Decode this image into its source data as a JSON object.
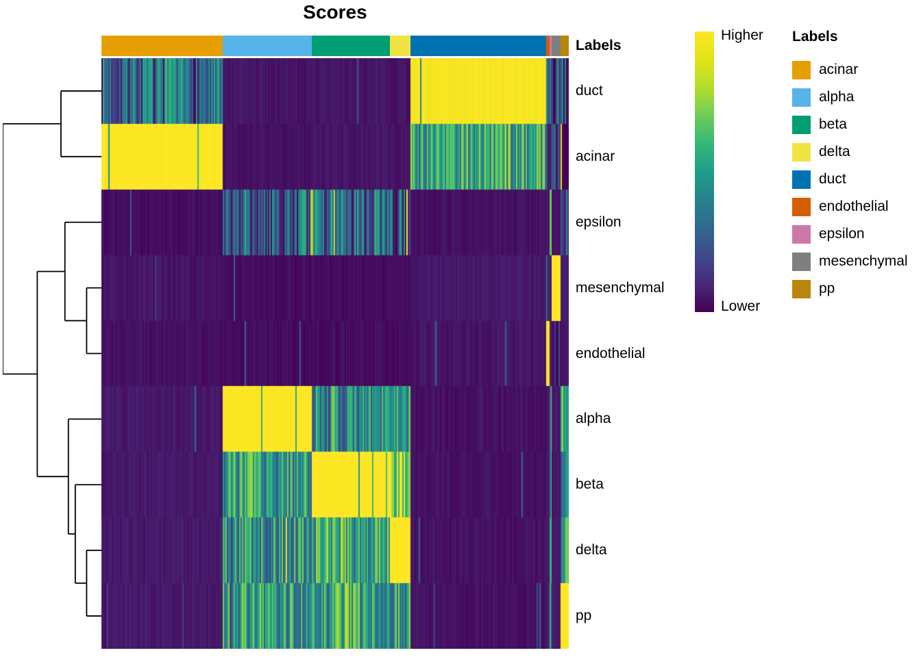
{
  "title": "Scores",
  "annotation_header": "Labels",
  "colorbar": {
    "top_label": "Higher",
    "bottom_label": "Lower"
  },
  "legend": {
    "title": "Labels",
    "entries": [
      {
        "label": "acinar",
        "color": "#E69F00"
      },
      {
        "label": "alpha",
        "color": "#56B4E9"
      },
      {
        "label": "beta",
        "color": "#009E73"
      },
      {
        "label": "delta",
        "color": "#F0E442"
      },
      {
        "label": "duct",
        "color": "#0072B2"
      },
      {
        "label": "endothelial",
        "color": "#D55E00"
      },
      {
        "label": "epsilon",
        "color": "#CC79A7"
      },
      {
        "label": "mesenchymal",
        "color": "#7F7F7F"
      },
      {
        "label": "pp",
        "color": "#B8860B"
      }
    ]
  },
  "chart_data": {
    "type": "heatmap",
    "title": "Scores",
    "value_scale": "normalized score, 0 = Lower (dark purple), 1 = Higher (yellow), viridis colormap",
    "rows": [
      "duct",
      "acinar",
      "epsilon",
      "mesenchymal",
      "endothelial",
      "alpha",
      "beta",
      "delta",
      "pp"
    ],
    "column_groups": [
      {
        "label": "acinar",
        "color": "#E69F00",
        "width_frac": 0.26
      },
      {
        "label": "alpha",
        "color": "#56B4E9",
        "width_frac": 0.19
      },
      {
        "label": "beta",
        "color": "#009E73",
        "width_frac": 0.168
      },
      {
        "label": "delta",
        "color": "#F0E442",
        "width_frac": 0.044
      },
      {
        "label": "duct",
        "color": "#0072B2",
        "width_frac": 0.29
      },
      {
        "label": "endothelial",
        "color": "#D55E00",
        "width_frac": 0.007
      },
      {
        "label": "epsilon",
        "color": "#CC79A7",
        "width_frac": 0.004
      },
      {
        "label": "mesenchymal",
        "color": "#7F7F7F",
        "width_frac": 0.019
      },
      {
        "label": "pp",
        "color": "#B8860B",
        "width_frac": 0.018
      }
    ],
    "values": [
      [
        0.3,
        0.04,
        0.04,
        0.04,
        0.97,
        0.15,
        0.2,
        0.25,
        0.2
      ],
      [
        1.0,
        0.03,
        0.04,
        0.04,
        0.55,
        0.1,
        0.15,
        0.2,
        0.2
      ],
      [
        0.02,
        0.28,
        0.33,
        0.25,
        0.03,
        0.05,
        0.6,
        0.05,
        0.3
      ],
      [
        0.04,
        0.02,
        0.02,
        0.02,
        0.05,
        0.1,
        0.05,
        1.0,
        0.05
      ],
      [
        0.03,
        0.02,
        0.02,
        0.02,
        0.04,
        1.0,
        0.05,
        0.1,
        0.05
      ],
      [
        0.05,
        1.0,
        0.45,
        0.5,
        0.03,
        0.05,
        0.55,
        0.05,
        0.5
      ],
      [
        0.05,
        0.5,
        1.0,
        0.8,
        0.03,
        0.05,
        0.5,
        0.05,
        0.55
      ],
      [
        0.05,
        0.45,
        0.55,
        1.0,
        0.03,
        0.05,
        0.5,
        0.05,
        0.5
      ],
      [
        0.05,
        0.5,
        0.55,
        0.5,
        0.03,
        0.05,
        0.5,
        0.05,
        1.0
      ]
    ],
    "colormap": {
      "name": "viridis",
      "stops": [
        "#440154",
        "#482878",
        "#3E4A89",
        "#31688E",
        "#26828E",
        "#1F9E89",
        "#35B779",
        "#6DCD59",
        "#B4DE2C",
        "#DFE318",
        "#FDE725"
      ]
    },
    "row_dendrogram": {
      "h": 1.0,
      "children": [
        {
          "h": 0.41,
          "children": [
            {
              "leaf": "duct"
            },
            {
              "leaf": "acinar"
            }
          ]
        },
        {
          "h": 0.65,
          "children": [
            {
              "h": 0.37,
              "children": [
                {
                  "leaf": "epsilon"
                },
                {
                  "h": 0.15,
                  "children": [
                    {
                      "leaf": "mesenchymal"
                    },
                    {
                      "leaf": "endothelial"
                    }
                  ]
                }
              ]
            },
            {
              "h": 0.335,
              "children": [
                {
                  "leaf": "alpha"
                },
                {
                  "h": 0.265,
                  "children": [
                    {
                      "leaf": "beta"
                    },
                    {
                      "h": 0.15,
                      "children": [
                        {
                          "leaf": "delta"
                        },
                        {
                          "leaf": "pp"
                        }
                      ]
                    }
                  ]
                }
              ]
            }
          ]
        }
      ]
    }
  }
}
